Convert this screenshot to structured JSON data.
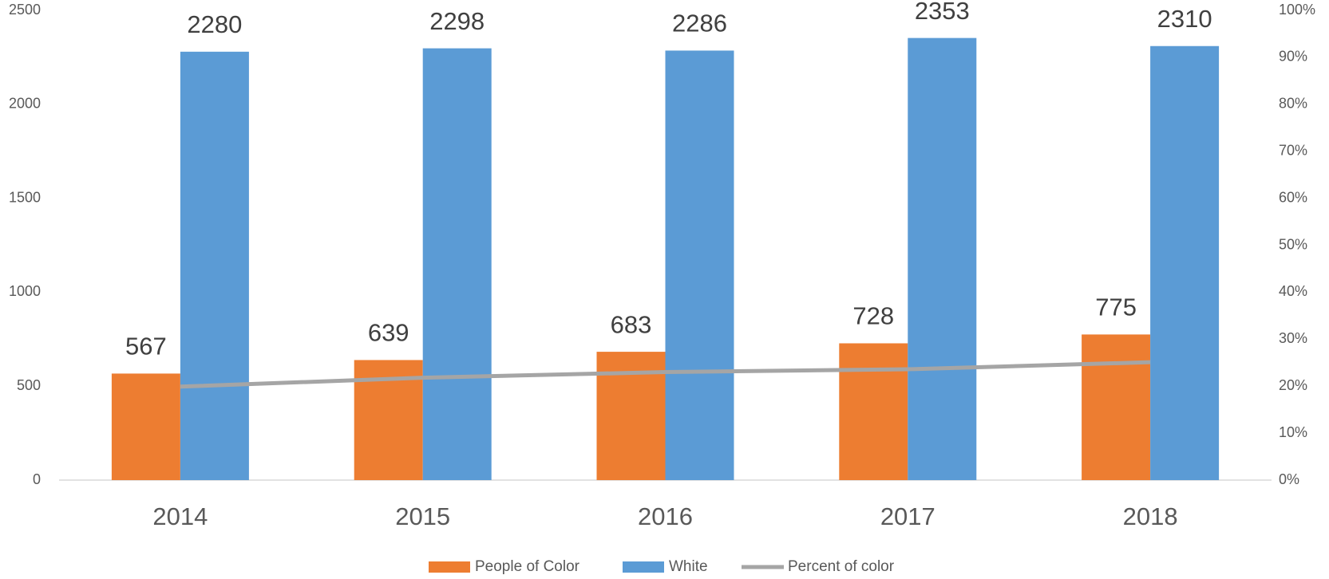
{
  "chart_data": {
    "type": "bar",
    "categories": [
      "2014",
      "2015",
      "2016",
      "2017",
      "2018"
    ],
    "series": [
      {
        "name": "People of Color",
        "color": "#ed7d31",
        "values": [
          567,
          639,
          683,
          728,
          775
        ]
      },
      {
        "name": "White",
        "color": "#5b9bd5",
        "values": [
          2280,
          2298,
          2286,
          2353,
          2310
        ]
      },
      {
        "name": "Percent of color",
        "color": "#a5a5a5",
        "type": "line",
        "axis": "y2",
        "values": [
          19.9,
          21.8,
          23.0,
          23.6,
          25.1
        ]
      }
    ],
    "ylim": [
      0,
      2500
    ],
    "yticks": [
      0,
      500,
      1000,
      1500,
      2000,
      2500
    ],
    "y2lim": [
      0,
      100
    ],
    "y2ticks": [
      {
        "value": 0,
        "label": "0%"
      },
      {
        "value": 10,
        "label": "10%"
      },
      {
        "value": 20,
        "label": "20%"
      },
      {
        "value": 30,
        "label": "30%"
      },
      {
        "value": 40,
        "label": "40%"
      },
      {
        "value": 50,
        "label": "50%"
      },
      {
        "value": 60,
        "label": "60%"
      },
      {
        "value": 70,
        "label": "70%"
      },
      {
        "value": 80,
        "label": "80%"
      },
      {
        "value": 90,
        "label": "90%"
      },
      {
        "value": 100,
        "label": "100%"
      }
    ],
    "grid": false,
    "legend": "bottom"
  }
}
